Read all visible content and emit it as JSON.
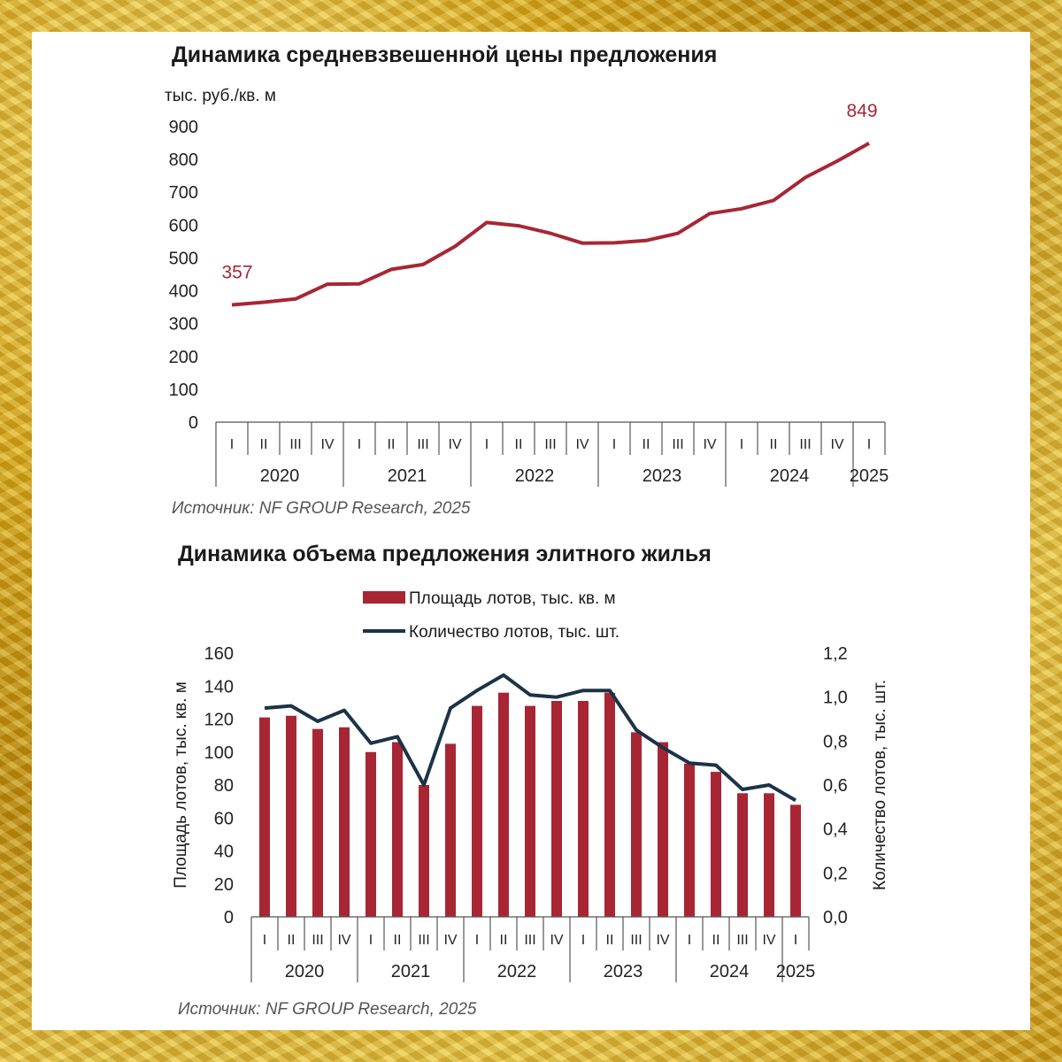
{
  "chart_data": [
    {
      "type": "line",
      "title": "Динамика средневзвешенной цены предложения",
      "ylabel": "тыс. руб./кв. м",
      "ylim": [
        0,
        900
      ],
      "yticks": [
        "0",
        "100",
        "200",
        "300",
        "400",
        "500",
        "600",
        "700",
        "800",
        "900"
      ],
      "quarters": [
        "I",
        "II",
        "III",
        "IV",
        "I",
        "II",
        "III",
        "IV",
        "I",
        "II",
        "III",
        "IV",
        "I",
        "II",
        "III",
        "IV",
        "I",
        "II",
        "III",
        "IV",
        "I"
      ],
      "years": [
        "2020",
        "2021",
        "2022",
        "2023",
        "2024",
        "2025"
      ],
      "series": [
        {
          "values": [
            357,
            365,
            375,
            420,
            421,
            465,
            480,
            535,
            608,
            598,
            575,
            545,
            546,
            553,
            575,
            635,
            650,
            675,
            745,
            795,
            849
          ],
          "color": "#a82634"
        }
      ],
      "annotations": {
        "start": "357",
        "end": "849"
      },
      "source": "Источник: NF GROUP Research, 2025",
      "grid": false
    },
    {
      "type": "bar",
      "title": "Динамика объема предложения элитного жилья",
      "ylabel": "Площадь лотов, тыс. кв. м",
      "y2label": "Количество лотов, тыс. шт.",
      "ylim": [
        0,
        160
      ],
      "y2lim": [
        0,
        1.2
      ],
      "yticks": [
        "0",
        "20",
        "40",
        "60",
        "80",
        "100",
        "120",
        "140",
        "160"
      ],
      "y2ticks": [
        "0,0",
        "0,2",
        "0,4",
        "0,6",
        "0,8",
        "1,0",
        "1,2"
      ],
      "quarters": [
        "I",
        "II",
        "III",
        "IV",
        "I",
        "II",
        "III",
        "IV",
        "I",
        "II",
        "III",
        "IV",
        "I",
        "II",
        "III",
        "IV",
        "I",
        "II",
        "III",
        "IV",
        "I"
      ],
      "years": [
        "2020",
        "2021",
        "2022",
        "2023",
        "2024",
        "2025"
      ],
      "series": [
        {
          "name": "Площадь лотов, тыс. кв. м",
          "kind": "bar",
          "color": "#a82634",
          "values": [
            121,
            122,
            114,
            115,
            100,
            106,
            80,
            105,
            128,
            136,
            128,
            131,
            131,
            136,
            112,
            106,
            93,
            88,
            75,
            75,
            68
          ]
        },
        {
          "name": "Количество лотов, тыс. шт.",
          "kind": "line",
          "axis": "right",
          "color": "#1c3347",
          "values": [
            0.95,
            0.96,
            0.89,
            0.94,
            0.79,
            0.82,
            0.6,
            0.95,
            1.03,
            1.1,
            1.01,
            1.0,
            1.03,
            1.03,
            0.85,
            0.77,
            0.7,
            0.69,
            0.58,
            0.6,
            0.53
          ]
        }
      ],
      "legend_position": "top-center",
      "source": "Источник: NF GROUP Research, 2025",
      "grid": false
    }
  ]
}
